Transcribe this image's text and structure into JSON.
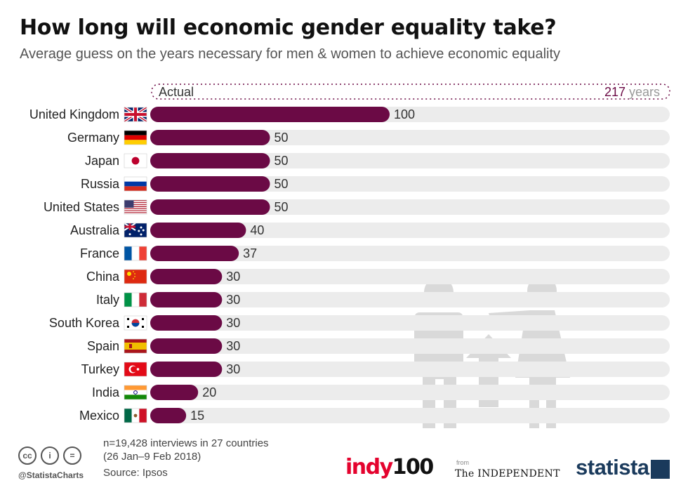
{
  "header": {
    "title": "How long will economic gender equality take?",
    "subtitle": "Average guess on the years necessary for men & women to achieve economic equality"
  },
  "colors": {
    "bar": "#6b0a45",
    "track": "#ececec",
    "actual_value": "#6b0a45",
    "actual_unit": "#999999",
    "illustration": "#d9d9d9"
  },
  "chart_data": {
    "type": "bar",
    "orientation": "horizontal",
    "categories": [
      "United Kingdom",
      "Germany",
      "Japan",
      "Russia",
      "United States",
      "Australia",
      "France",
      "China",
      "Italy",
      "South Korea",
      "Spain",
      "Turkey",
      "India",
      "Mexico"
    ],
    "values": [
      100,
      50,
      50,
      50,
      50,
      40,
      37,
      30,
      30,
      30,
      30,
      30,
      20,
      15
    ],
    "flags": [
      "uk",
      "de",
      "jp",
      "ru",
      "us",
      "au",
      "fr",
      "cn",
      "it",
      "kr",
      "es",
      "tr",
      "in",
      "mx"
    ],
    "xlim": [
      0,
      217
    ],
    "actual": {
      "label": "Actual",
      "value": "217",
      "unit": "years"
    }
  },
  "footer": {
    "note_line1": "n=19,428 interviews in 27 countries",
    "note_line2": "(26 Jan–9 Feb 2018)",
    "source": "Source: Ipsos",
    "handle": "@StatistaCharts",
    "cc_icons": [
      "cc",
      "i",
      "="
    ],
    "logo_indy_text": "indy",
    "logo_indy_num": "100",
    "logo_from": "from",
    "logo_independent": "The INDEPENDENT",
    "logo_statista": "statista"
  }
}
